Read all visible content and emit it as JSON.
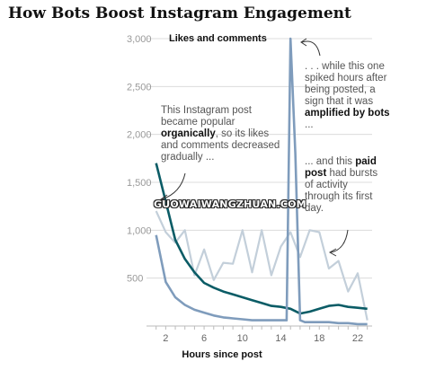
{
  "title": "How Bots Boost Instagram Engagement",
  "watermark": "GUOWAIWANGZHUAN.COM",
  "annotations": {
    "organic": {
      "pre": "This Instagram post became popular ",
      "bold": "organically",
      "post": ", so its likes and comments decreased gradually ..."
    },
    "bots": {
      "pre": ". . . while this one spiked hours after being posted, a sign that it was ",
      "bold": "amplified by bots",
      "post": " ..."
    },
    "paid": {
      "pre": "... and this ",
      "bold": "paid post",
      "post": " had bursts of activity through its first day."
    }
  },
  "chart_data": {
    "type": "line",
    "title": "Likes and comments",
    "xlabel": "Hours since post",
    "ylabel": "",
    "xlim": [
      0,
      23.5
    ],
    "ylim": [
      0,
      3000
    ],
    "xticks": [
      2,
      6,
      10,
      14,
      18,
      22
    ],
    "yticks": [
      {
        "value": 500,
        "label": "500"
      },
      {
        "value": 1000,
        "label": "1,000"
      },
      {
        "value": 1500,
        "label": "1,500"
      },
      {
        "value": 2000,
        "label": "2,000"
      },
      {
        "value": 2500,
        "label": "2,500"
      },
      {
        "value": 3000,
        "label": "3,000"
      }
    ],
    "grid": true,
    "series": [
      {
        "key": "paid",
        "color": "#c3cfda",
        "width": 2.2,
        "x": [
          1,
          2,
          3,
          4,
          5,
          6,
          7,
          8,
          9,
          10,
          11,
          12,
          13,
          14,
          15,
          16,
          17,
          18,
          19,
          20,
          21,
          22,
          23
        ],
        "y": [
          1200,
          980,
          870,
          1000,
          530,
          800,
          480,
          660,
          650,
          1000,
          560,
          1000,
          530,
          830,
          980,
          720,
          1000,
          980,
          600,
          680,
          360,
          550,
          60
        ]
      },
      {
        "key": "organic",
        "color": "#0b5c66",
        "width": 2.6,
        "x": [
          1,
          2,
          3,
          4,
          5,
          6,
          7,
          8,
          9,
          10,
          11,
          12,
          13,
          14,
          15,
          16,
          17,
          18,
          19,
          20,
          21,
          22,
          23
        ],
        "y": [
          1700,
          1300,
          900,
          700,
          560,
          450,
          400,
          360,
          330,
          300,
          270,
          240,
          210,
          200,
          180,
          130,
          150,
          180,
          210,
          220,
          200,
          190,
          180
        ]
      },
      {
        "key": "bots",
        "color": "#7f9cbc",
        "width": 2.6,
        "x": [
          1,
          2,
          3,
          4,
          5,
          6,
          7,
          8,
          9,
          10,
          11,
          12,
          13,
          14,
          14.6,
          15,
          15.5,
          16,
          16.5,
          17,
          18,
          19,
          20,
          21,
          22,
          23
        ],
        "y": [
          950,
          460,
          300,
          220,
          170,
          140,
          110,
          90,
          80,
          70,
          60,
          60,
          60,
          60,
          60,
          3000,
          1800,
          60,
          40,
          40,
          40,
          40,
          30,
          30,
          20,
          20
        ]
      }
    ]
  }
}
